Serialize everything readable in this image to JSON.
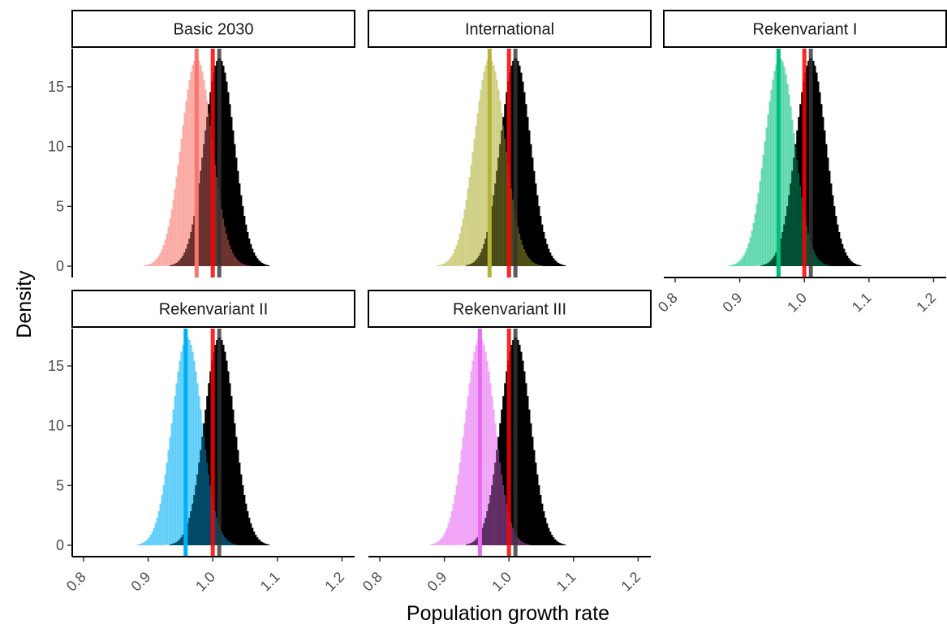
{
  "chart_data": {
    "type": "bar",
    "subtype": "faceted overlaid density histograms",
    "xlabel": "Population growth rate",
    "ylabel": "Density",
    "xlim": [
      0.8,
      1.2
    ],
    "ylim": [
      0,
      17.5
    ],
    "x_ticks": [
      "0.8",
      "0.9",
      "1.0",
      "1.1",
      "1.2"
    ],
    "y_ticks": [
      "0",
      "5",
      "10",
      "15"
    ],
    "grid": false,
    "legend": "none",
    "reference_line": {
      "x": 1.0,
      "color": "#ff0000"
    },
    "baseline_series": {
      "color": "#000000",
      "mean": 1.01,
      "sd": 0.023,
      "peak_density": 17.4
    },
    "facets": [
      {
        "label": "Basic 2030",
        "color": "#f8766d",
        "mean": 0.975,
        "sd": 0.024,
        "peak_density": 17.4,
        "mean_line": 0.975
      },
      {
        "label": "International",
        "color": "#b3b33a",
        "mean": 0.97,
        "sd": 0.024,
        "peak_density": 17.4,
        "mean_line": 0.97
      },
      {
        "label": "Rekenvariant I",
        "color": "#00bf7d",
        "mean": 0.962,
        "sd": 0.023,
        "peak_density": 17.4,
        "mean_line": 0.96
      },
      {
        "label": "Rekenvariant II",
        "color": "#00b0f6",
        "mean": 0.96,
        "sd": 0.023,
        "peak_density": 17.4,
        "mean_line": 0.958
      },
      {
        "label": "Rekenvariant III",
        "color": "#e76bf3",
        "mean": 0.955,
        "sd": 0.023,
        "peak_density": 17.4,
        "mean_line": 0.955
      }
    ]
  }
}
